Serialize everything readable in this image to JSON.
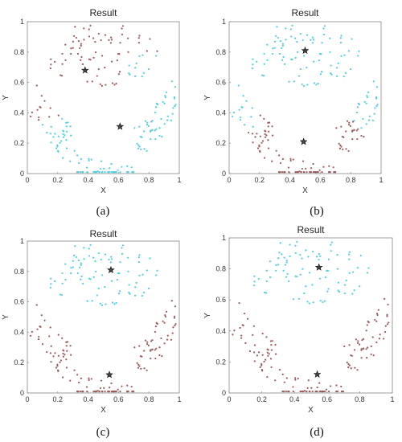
{
  "chart_data": [
    {
      "type": "scatter",
      "panel": "a",
      "caption": "(a)",
      "title": "Result",
      "xlabel": "X",
      "ylabel": "Y",
      "xlim": [
        0,
        1
      ],
      "ylim": [
        0,
        1
      ],
      "xticks": [
        "0",
        "0.2",
        "0.4",
        "0.6",
        "0.8",
        "1"
      ],
      "yticks": [
        "0",
        "0.2",
        "0.4",
        "0.6",
        "0.8",
        "1"
      ],
      "grid": false,
      "cluster_colors": [
        "#9b5a5a",
        "#4dd0dd"
      ],
      "centroids": [
        {
          "x": 0.38,
          "y": 0.68,
          "cluster": 0
        },
        {
          "x": 0.61,
          "y": 0.31,
          "cluster": 1
        }
      ],
      "assignment": "split"
    },
    {
      "type": "scatter",
      "panel": "b",
      "caption": "(b)",
      "title": "Result",
      "xlabel": "X",
      "ylabel": "Y",
      "xlim": [
        0,
        1
      ],
      "ylim": [
        0,
        1
      ],
      "xticks": [
        "0",
        "0.2",
        "0.4",
        "0.6",
        "0.8",
        "1"
      ],
      "yticks": [
        "0",
        "0.2",
        "0.4",
        "0.6",
        "0.8",
        "1"
      ],
      "grid": false,
      "cluster_colors": [
        "#4dd0dd",
        "#9b5a5a"
      ],
      "centroids": [
        {
          "x": 0.5,
          "y": 0.81,
          "cluster": 0
        },
        {
          "x": 0.49,
          "y": 0.21,
          "cluster": 1
        }
      ],
      "assignment": "shape_b"
    },
    {
      "type": "scatter",
      "panel": "c",
      "caption": "(c)",
      "title": "Result",
      "xlabel": "X",
      "ylabel": "Y",
      "xlim": [
        0,
        1
      ],
      "ylim": [
        0,
        1
      ],
      "xticks": [
        "0",
        "0.2",
        "0.4",
        "0.6",
        "0.8",
        "1"
      ],
      "yticks": [
        "0",
        "0.2",
        "0.4",
        "0.6",
        "0.8",
        "1"
      ],
      "grid": false,
      "cluster_colors": [
        "#4dd0dd",
        "#9b5a5a"
      ],
      "centroids": [
        {
          "x": 0.55,
          "y": 0.81,
          "cluster": 0
        },
        {
          "x": 0.54,
          "y": 0.12,
          "cluster": 1
        }
      ],
      "assignment": "shape"
    },
    {
      "type": "scatter",
      "panel": "d",
      "caption": "(d)",
      "title": "Result",
      "xlabel": "X",
      "ylabel": "Y",
      "xlim": [
        0,
        1
      ],
      "ylim": [
        0,
        1
      ],
      "xticks": [
        "0",
        "0.2",
        "0.4",
        "0.6",
        "0.8",
        "1"
      ],
      "yticks": [
        "0",
        "0.2",
        "0.4",
        "0.6",
        "0.8",
        "1"
      ],
      "grid": false,
      "cluster_colors": [
        "#4dd0dd",
        "#9b5a5a"
      ],
      "centroids": [
        {
          "x": 0.55,
          "y": 0.81,
          "cluster": 0
        },
        {
          "x": 0.54,
          "y": 0.12,
          "cluster": 1
        }
      ],
      "assignment": "shape"
    }
  ]
}
